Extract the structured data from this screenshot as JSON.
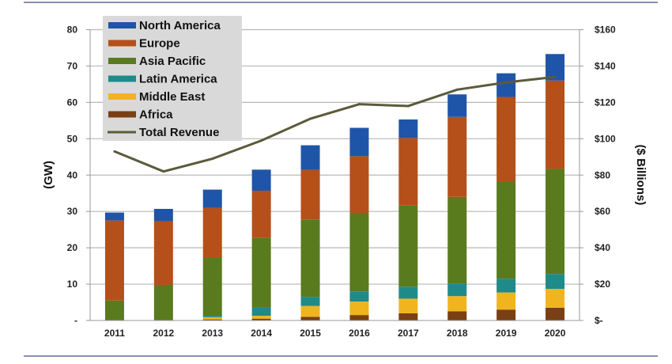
{
  "chart_data": {
    "type": "bar",
    "stacked": true,
    "categories": [
      "2011",
      "2012",
      "2013",
      "2014",
      "2015",
      "2016",
      "2017",
      "2018",
      "2019",
      "2020"
    ],
    "series": [
      {
        "name": "Africa",
        "color": "#7a3f14",
        "values": [
          0,
          0,
          0.3,
          0.5,
          1.0,
          1.5,
          2.0,
          2.5,
          3.0,
          3.5
        ]
      },
      {
        "name": "Middle East",
        "color": "#f0b51e",
        "values": [
          0,
          0,
          0.6,
          0.8,
          3.0,
          3.7,
          4.0,
          4.2,
          4.7,
          5.2
        ]
      },
      {
        "name": "Latin America",
        "color": "#1f8a8a",
        "values": [
          0,
          0,
          0.4,
          2.2,
          2.5,
          2.8,
          3.3,
          3.5,
          3.8,
          4.1
        ]
      },
      {
        "name": "Asia Pacific",
        "color": "#5a7a1e",
        "values": [
          5.5,
          9.8,
          15.9,
          19.2,
          21.2,
          21.6,
          22.3,
          23.8,
          26.7,
          28.9
        ]
      },
      {
        "name": "Europe",
        "color": "#b5501a",
        "values": [
          22.0,
          17.5,
          13.8,
          13.0,
          13.7,
          15.6,
          18.6,
          22.0,
          23.3,
          24.3
        ]
      },
      {
        "name": "North America",
        "color": "#1f55a8",
        "values": [
          2.2,
          3.4,
          5.0,
          5.8,
          6.8,
          7.8,
          5.1,
          6.2,
          6.5,
          7.3
        ]
      }
    ],
    "line_series": {
      "name": "Total Revenue",
      "color": "#5b5a3a",
      "axis": "right",
      "values": [
        93,
        82,
        89,
        99,
        111,
        119,
        118,
        127,
        131,
        134
      ]
    },
    "ylabel": "(GW)",
    "ylim": [
      0,
      80
    ],
    "yticks": [
      "-",
      "10",
      "20",
      "30",
      "40",
      "50",
      "60",
      "70",
      "80"
    ],
    "y2label": "($ Billions)",
    "y2lim": [
      0,
      160
    ],
    "y2ticks": [
      "$-",
      "$20",
      "$40",
      "$60",
      "$80",
      "$100",
      "$120",
      "$140",
      "$160"
    ],
    "legend_order": [
      "North America",
      "Europe",
      "Asia Pacific",
      "Latin America",
      "Middle East",
      "Africa",
      "Total Revenue"
    ],
    "legend_position": "top-left",
    "grid": true
  }
}
